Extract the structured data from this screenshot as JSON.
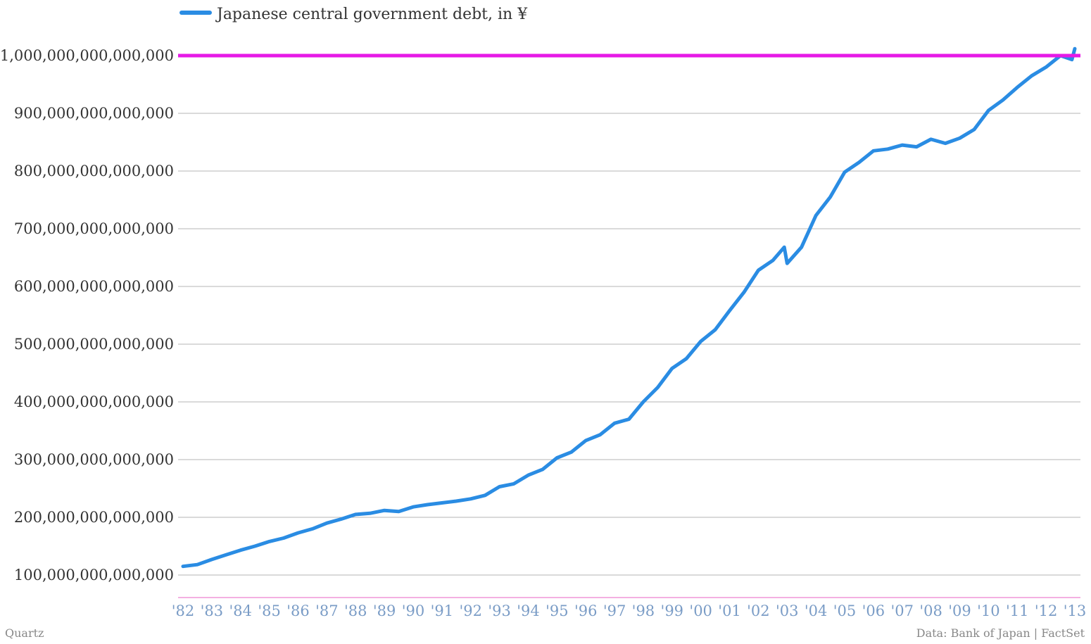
{
  "chart_data": {
    "type": "line",
    "series": [
      {
        "name": "Japanese central government debt, in ¥",
        "color": "#2a8ce3",
        "x": [
          1982.0,
          1982.5,
          1983.0,
          1983.5,
          1984.0,
          1984.5,
          1985.0,
          1985.5,
          1986.0,
          1986.5,
          1987.0,
          1987.5,
          1988.0,
          1988.5,
          1989.0,
          1989.5,
          1990.0,
          1990.5,
          1991.0,
          1991.5,
          1992.0,
          1992.5,
          1993.0,
          1993.5,
          1994.0,
          1994.5,
          1995.0,
          1995.5,
          1996.0,
          1996.5,
          1997.0,
          1997.5,
          1998.0,
          1998.5,
          1999.0,
          1999.5,
          2000.0,
          2000.5,
          2001.0,
          2001.5,
          2002.0,
          2002.5,
          2002.9,
          2003.0,
          2003.5,
          2004.0,
          2004.5,
          2005.0,
          2005.5,
          2006.0,
          2006.5,
          2007.0,
          2007.5,
          2008.0,
          2008.5,
          2009.0,
          2009.5,
          2010.0,
          2010.5,
          2011.0,
          2011.5,
          2012.0,
          2012.5,
          2012.9,
          2013.0
        ],
        "values": [
          115,
          118,
          127,
          135,
          143,
          150,
          158,
          164,
          173,
          180,
          190,
          197,
          205,
          207,
          212,
          210,
          218,
          222,
          225,
          228,
          232,
          238,
          253,
          258,
          273,
          283,
          303,
          313,
          333,
          343,
          363,
          370,
          400,
          425,
          458,
          475,
          505,
          525,
          558,
          590,
          628,
          645,
          668,
          640,
          668,
          723,
          755,
          798,
          815,
          835,
          838,
          845,
          842,
          855,
          848,
          857,
          872,
          905,
          923,
          945,
          965,
          980,
          1000,
          993,
          1012
        ]
      }
    ],
    "y_unit": 1000000000000,
    "ylim": [
      60,
      1010
    ],
    "y_ticks": [
      100,
      200,
      300,
      400,
      500,
      600,
      700,
      800,
      900,
      1000
    ],
    "y_tick_labels": [
      "100,000,000,000,000",
      "200,000,000,000,000",
      "300,000,000,000,000",
      "400,000,000,000,000",
      "500,000,000,000,000",
      "600,000,000,000,000",
      "700,000,000,000,000",
      "800,000,000,000,000",
      "900,000,000,000,000",
      "1,000,000,000,000,000"
    ],
    "x_ticks": [
      1982,
      1983,
      1984,
      1985,
      1986,
      1987,
      1988,
      1989,
      1990,
      1991,
      1992,
      1993,
      1994,
      1995,
      1996,
      1997,
      1998,
      1999,
      2000,
      2001,
      2002,
      2003,
      2004,
      2005,
      2006,
      2007,
      2008,
      2009,
      2010,
      2011,
      2012,
      2013
    ],
    "x_tick_labels": [
      "'82",
      "'83",
      "'84",
      "'85",
      "'86",
      "'87",
      "'88",
      "'89",
      "'90",
      "'91",
      "'92",
      "'93",
      "'94",
      "'95",
      "'96",
      "'97",
      "'98",
      "'99",
      "'00",
      "'01",
      "'02",
      "'03",
      "'04",
      "'05",
      "'06",
      "'07",
      "'08",
      "'09",
      "'10",
      "'11",
      "'12",
      "'13"
    ],
    "reference_line": {
      "value": 1000,
      "color": "#e619e6"
    },
    "grid": true,
    "legend_position": "top-left",
    "tick_label_color_x": "#7a9cc6",
    "tick_label_color_y": "#333333",
    "grid_color": "#b5b5b5",
    "baseline_color": "#ea62c6"
  },
  "footer": {
    "left": "Quartz",
    "right": "Data: Bank of Japan | FactSet"
  }
}
